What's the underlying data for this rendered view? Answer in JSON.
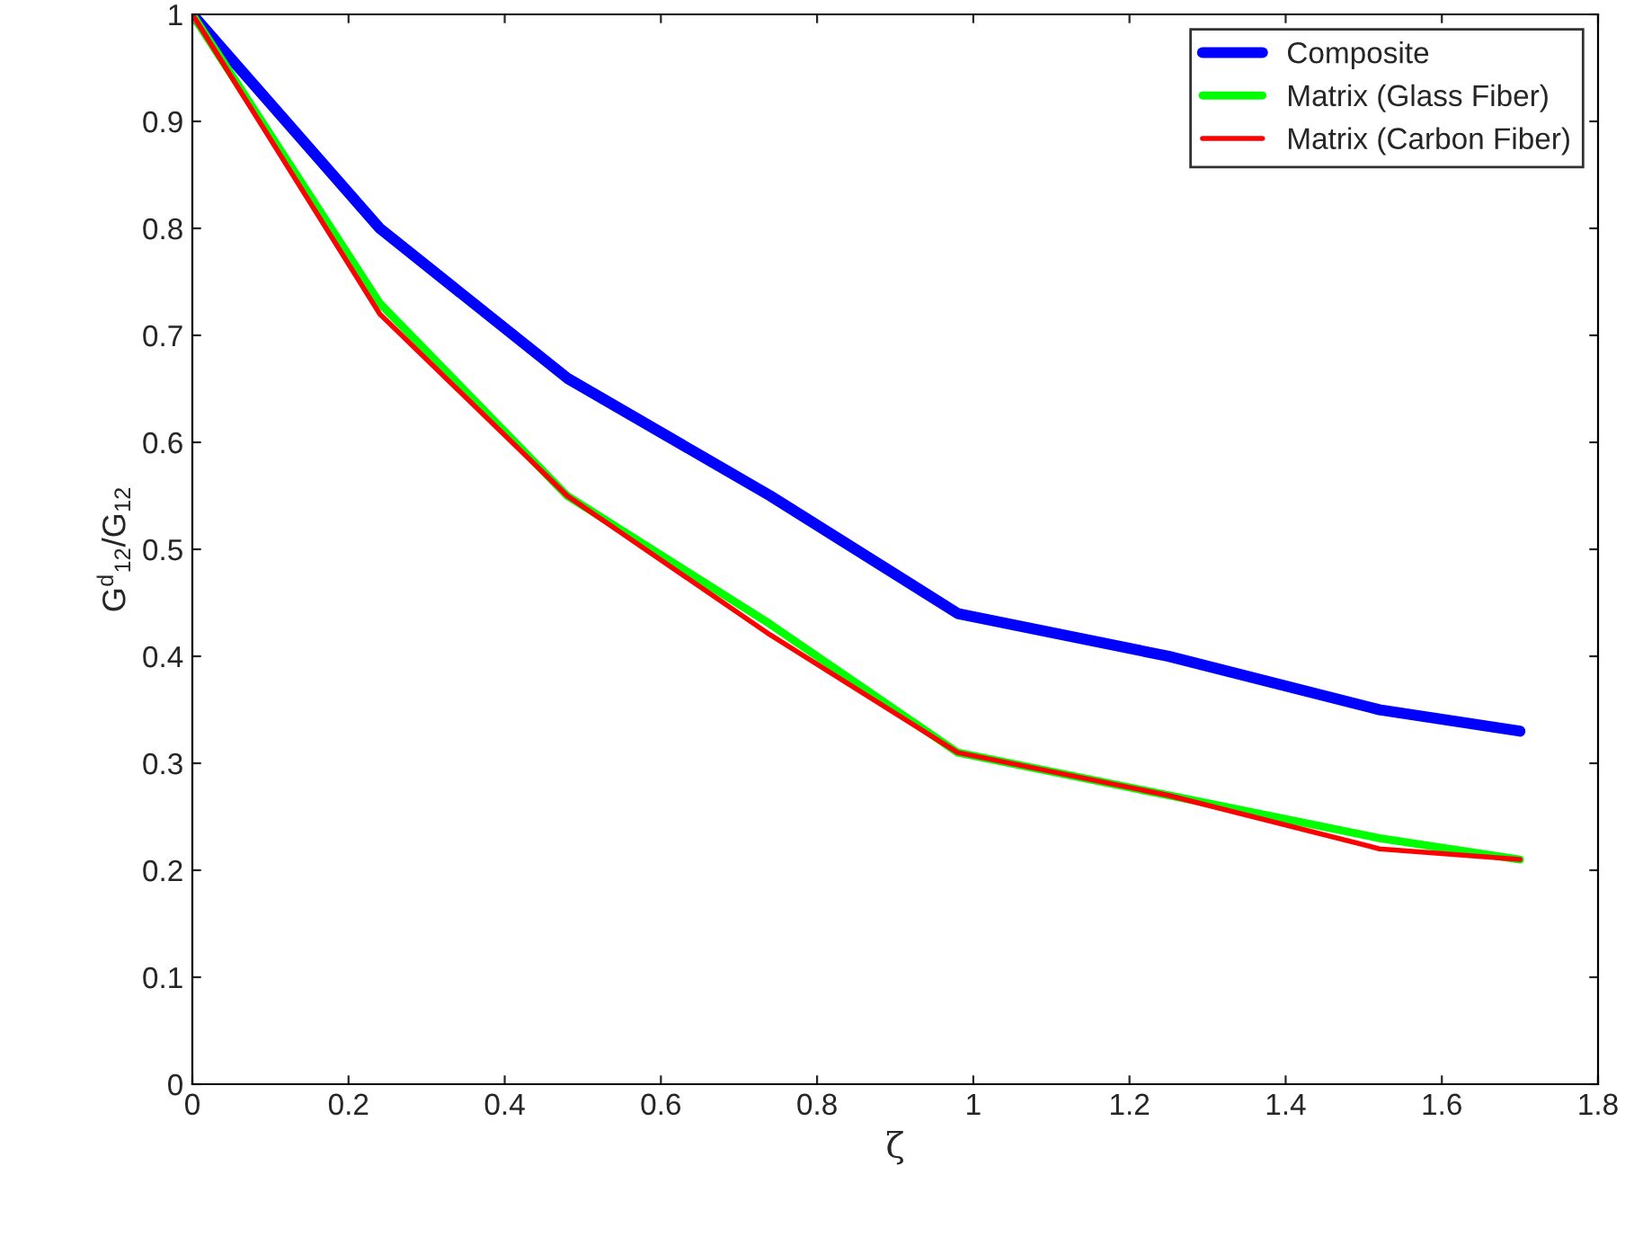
{
  "chart_data": {
    "type": "line",
    "xlabel": "ζ",
    "ylabel": "G$^{d}$$_{12}$/G$_{12}$",
    "xlim": [
      0,
      1.8
    ],
    "xticks": [
      0,
      0.2,
      0.4,
      0.6,
      0.8,
      1,
      1.2,
      1.4,
      1.6,
      1.8
    ],
    "ylim": [
      0,
      1
    ],
    "yticks": [
      0,
      0.1,
      0.2,
      0.3,
      0.4,
      0.5,
      0.6,
      0.7,
      0.8,
      0.9,
      1
    ],
    "x": [
      0,
      0.24,
      0.48,
      0.74,
      0.98,
      1.25,
      1.52,
      1.7
    ],
    "series": [
      {
        "name": "Composite",
        "color": "#0000ff",
        "values": [
          1,
          0.8,
          0.66,
          0.55,
          0.44,
          0.4,
          0.35,
          0.33
        ]
      },
      {
        "name": "Matrix (Glass Fiber)",
        "color": "#00ff00",
        "values": [
          1,
          0.73,
          0.55,
          0.43,
          0.31,
          0.27,
          0.23,
          0.21
        ]
      },
      {
        "name": "Matrix (Carbon Fiber)",
        "color": "#ff0000",
        "values": [
          1,
          0.72,
          0.55,
          0.42,
          0.31,
          0.27,
          0.22,
          0.21
        ]
      }
    ],
    "grid": false,
    "legend": "top right",
    "marker": "none",
    "line_style": "solid"
  }
}
